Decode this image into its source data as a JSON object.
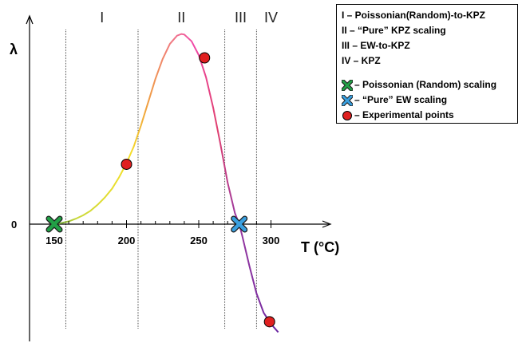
{
  "chart_data": {
    "type": "line",
    "title": "",
    "xlabel": "T (°C)",
    "ylabel": "λ",
    "xlim": [
      140,
      310
    ],
    "x_ticks": [
      150,
      200,
      250,
      300
    ],
    "y_ticks": [
      {
        "value": 0,
        "label": "0"
      }
    ],
    "regions": [
      {
        "label": "I",
        "from": 158,
        "to": 208
      },
      {
        "label": "II",
        "from": 208,
        "to": 268
      },
      {
        "label": "III",
        "from": 268,
        "to": 290
      },
      {
        "label": "IV",
        "from": 290,
        "to": 310
      }
    ],
    "boundaries": [
      158,
      208,
      268,
      290
    ],
    "series": [
      {
        "x": [
          150,
          155,
          160,
          165,
          170,
          175,
          180,
          185,
          190,
          195,
          200,
          205,
          210,
          215,
          220,
          225,
          230,
          235,
          238,
          240,
          245,
          250,
          255,
          260,
          265,
          270,
          275,
          278,
          280,
          285,
          290,
          295,
          300,
          305
        ],
        "y": [
          0,
          0.02,
          0.05,
          0.1,
          0.16,
          0.24,
          0.35,
          0.48,
          0.64,
          0.85,
          1.1,
          1.4,
          1.78,
          2.2,
          2.62,
          2.98,
          3.25,
          3.4,
          3.43,
          3.42,
          3.3,
          3.05,
          2.65,
          2.1,
          1.45,
          0.75,
          0.2,
          0,
          -0.2,
          -0.75,
          -1.25,
          -1.6,
          -1.8,
          -1.95
        ]
      }
    ],
    "experimental_points": [
      {
        "x": 200,
        "y": 1.08
      },
      {
        "x": 254,
        "y": 3.0
      },
      {
        "x": 299,
        "y": -1.76
      }
    ],
    "markers": [
      {
        "label": "Poissonian (Random) scaling",
        "x": 150,
        "y": 0,
        "color": "#22a046"
      },
      {
        "label": "“Pure” EW scaling",
        "x": 278,
        "y": 0,
        "color": "#3aa0e0"
      }
    ],
    "colors": {
      "region_I": "#f2e82a",
      "region_II": "#e8447a",
      "region_III": "#9b3a8c",
      "region_IV": "#7a2da0",
      "experimental": "#e02020",
      "poissonian": "#22a046",
      "ew": "#3aa0e0"
    }
  },
  "legend": {
    "rows": [
      "I   – Poissonian(Random)-to-KPZ",
      "II  – “Pure” KPZ scaling",
      "III – EW-to-KPZ",
      "IV – KPZ",
      "– Poissonian (Random) scaling",
      "– “Pure” EW scaling",
      "– Experimental points"
    ]
  }
}
